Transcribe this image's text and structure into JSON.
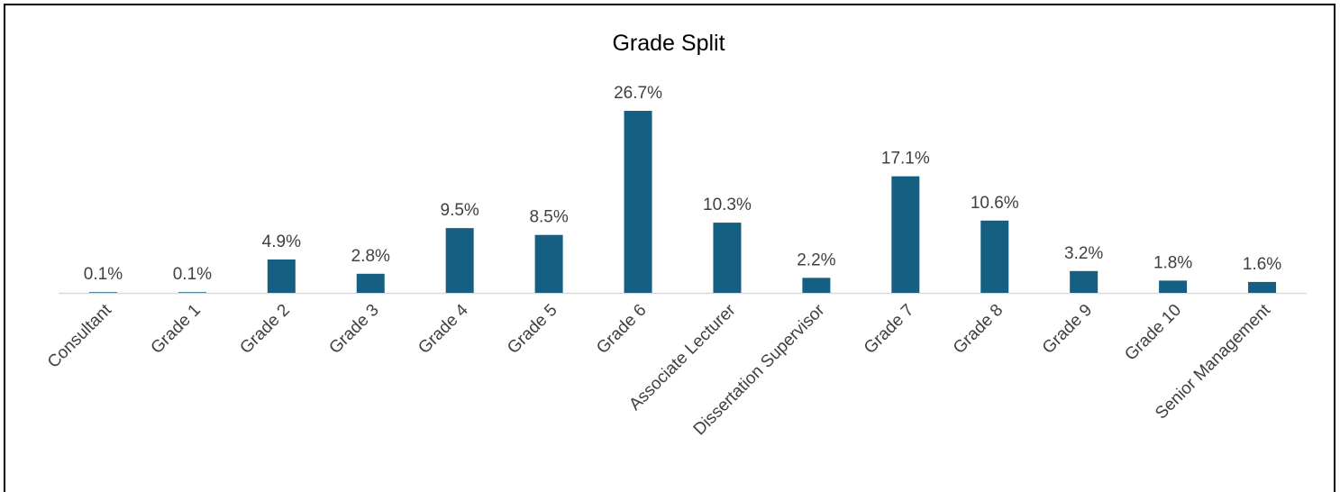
{
  "chart_data": {
    "type": "bar",
    "title": "Grade Split",
    "categories": [
      "Consultant",
      "Grade 1",
      "Grade 2",
      "Grade 3",
      "Grade 4",
      "Grade 5",
      "Grade 6",
      "Associate Lecturer",
      "Dissertation Supervisor",
      "Grade 7",
      "Grade 8",
      "Grade 9",
      "Grade 10",
      "Senior Management"
    ],
    "values": [
      0.1,
      0.1,
      4.9,
      2.8,
      9.5,
      8.5,
      26.7,
      10.3,
      2.2,
      17.1,
      10.6,
      3.2,
      1.8,
      1.6
    ],
    "value_labels": [
      "0.1%",
      "0.1%",
      "4.9%",
      "2.8%",
      "9.5%",
      "8.5%",
      "26.7%",
      "10.3%",
      "2.2%",
      "17.1%",
      "10.6%",
      "3.2%",
      "1.8%",
      "1.6%"
    ],
    "color": "#156082"
  }
}
